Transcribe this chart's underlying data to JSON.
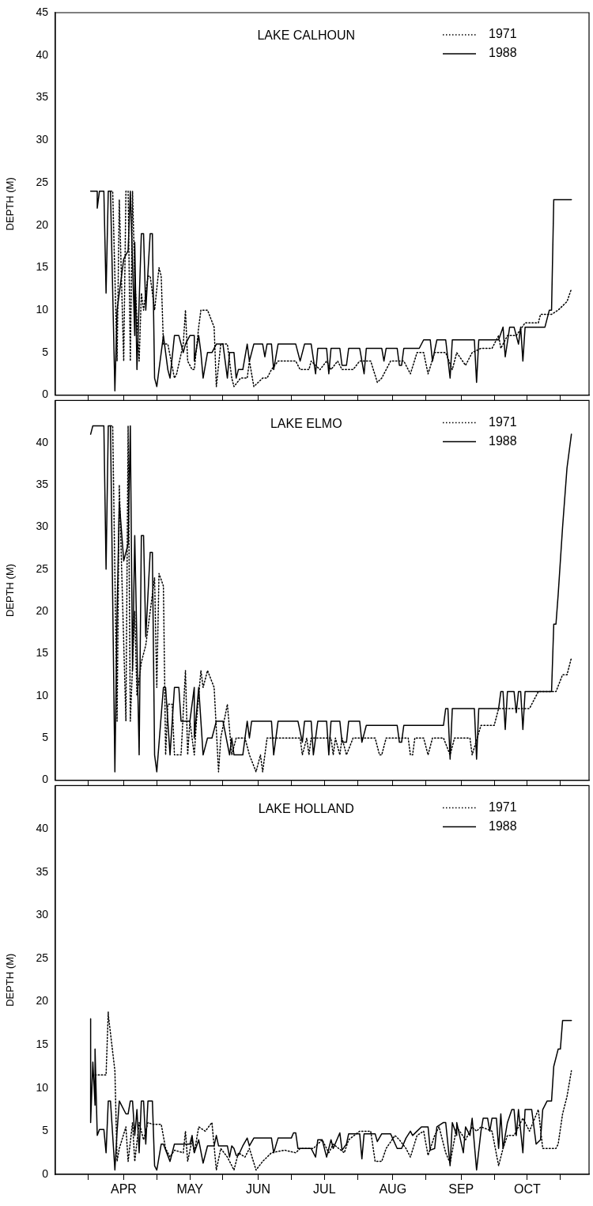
{
  "chart_data": [
    {
      "type": "line",
      "title": "LAKE CALHOUN",
      "ylabel": "DEPTH (M)",
      "legend": "top right",
      "tick_labels": "y",
      "xlim": [
        "--03-01",
        "--10-29"
      ],
      "xticks": [
        {
          "value": "--03-16",
          "label": null
        },
        {
          "value": "--04-01",
          "label": null
        },
        {
          "value": "--04-16",
          "label": null
        },
        {
          "value": "--05-01",
          "label": null
        },
        {
          "value": "--05-16",
          "label": null
        },
        {
          "value": "--06-01",
          "label": null
        },
        {
          "value": "--06-16",
          "label": null
        },
        {
          "value": "--07-01",
          "label": null
        },
        {
          "value": "--07-16",
          "label": null
        },
        {
          "value": "--08-01",
          "label": null
        },
        {
          "value": "--08-16",
          "label": null
        },
        {
          "value": "--09-01",
          "label": null
        },
        {
          "value": "--09-16",
          "label": null
        },
        {
          "value": "--10-01",
          "label": null
        },
        {
          "value": "--10-16",
          "label": null
        }
      ],
      "ylim": [
        0,
        45
      ],
      "yticks": [
        0,
        5,
        10,
        15,
        20,
        25,
        30,
        35,
        40,
        45
      ],
      "series": [
        {
          "name": "1971",
          "color": "#000000",
          "line_style": "dotted",
          "x": [
            "--03-26",
            "--03-27",
            "--03-29",
            "--03-30",
            "--04-01",
            "--04-02",
            "--04-03",
            "--04-04",
            "--04-05",
            "--04-06",
            "--04-08",
            "--04-09",
            "--04-10",
            "--04-12",
            "--04-13",
            "--04-15",
            "--04-17",
            "--04-18",
            "--04-19",
            "--04-21",
            "--04-24",
            "--04-25",
            "--04-28",
            "--04-29",
            "--04-29",
            "--04-30",
            "--05-02",
            "--05-03",
            "--05-05",
            "--05-06",
            "--05-09",
            "--05-12",
            "--05-13",
            "--05-15",
            "--05-18",
            "--05-20",
            "--05-21",
            "--05-24",
            "--05-27",
            "--05-28",
            "--05-30",
            "--06-03",
            "--06-05",
            "--06-07",
            "--06-10",
            "--06-18",
            "--06-20",
            "--06-24",
            "--06-25",
            "--06-29",
            "--07-02",
            "--07-04",
            "--07-07",
            "--07-09",
            "--07-14",
            "--07-17",
            "--07-22",
            "--07-25",
            "--07-27",
            "--07-31",
            "--08-06",
            "--08-09",
            "--08-12",
            "--08-15",
            "--08-17",
            "--08-20",
            "--08-25",
            "--08-28",
            "--08-30",
            "--09-03",
            "--09-06",
            "--09-10",
            "--09-15",
            "--09-18",
            "--09-19",
            "--09-22",
            "--09-26",
            "--09-30",
            "--10-06",
            "--10-07",
            "--10-12",
            "--10-15",
            "--10-19",
            "--10-21"
          ],
          "values": [
            24,
            24,
            4,
            23,
            4,
            24,
            24,
            4,
            24,
            14,
            4,
            12,
            10,
            14,
            14,
            10,
            15,
            14,
            6,
            6,
            2,
            2.5,
            6,
            10,
            10,
            4,
            3,
            3,
            8,
            10,
            10,
            8,
            1,
            6,
            6,
            2,
            1,
            2,
            2,
            4,
            1,
            2,
            2,
            3,
            4,
            4,
            3,
            3,
            4,
            3,
            4,
            3,
            4,
            3,
            3,
            4,
            4,
            1.5,
            2,
            4,
            4,
            2.5,
            5,
            5,
            2.5,
            5,
            5,
            3,
            5,
            3.5,
            5,
            5.5,
            5.5,
            7,
            5.5,
            7,
            7,
            8.5,
            8.5,
            9.5,
            9.5,
            10,
            11,
            12.5
          ]
        },
        {
          "name": "1988",
          "color": "#000000",
          "line_style": "solid",
          "x": [
            "--03-17",
            "--03-20",
            "--03-20",
            "--03-21",
            "--03-23",
            "--03-24",
            "--03-25",
            "--03-26",
            "--03-28",
            "--03-29",
            "--04-01",
            "--04-03",
            "--04-04",
            "--04-06",
            "--04-06",
            "--04-07",
            "--04-09",
            "--04-10",
            "--04-11",
            "--04-13",
            "--04-14",
            "--04-15",
            "--04-16",
            "--04-19",
            "--04-19",
            "--04-21",
            "--04-22",
            "--04-24",
            "--04-26",
            "--04-28",
            "--04-29",
            "--05-01",
            "--05-03",
            "--05-03",
            "--05-05",
            "--05-06",
            "--05-07",
            "--05-09",
            "--05-11",
            "--05-13",
            "--05-16",
            "--05-18",
            "--05-19",
            "--05-21",
            "--05-22",
            "--05-23",
            "--05-25",
            "--05-27",
            "--05-28",
            "--05-30",
            "--06-03",
            "--06-04",
            "--06-05",
            "--06-07",
            "--06-08",
            "--06-10",
            "--06-18",
            "--06-20",
            "--06-22",
            "--06-25",
            "--06-27",
            "--06-28",
            "--07-02",
            "--07-03",
            "--07-04",
            "--07-08",
            "--07-09",
            "--07-11",
            "--07-12",
            "--07-17",
            "--07-19",
            "--07-20",
            "--07-27",
            "--07-28",
            "--07-29",
            "--08-03",
            "--08-04",
            "--08-05",
            "--08-06",
            "--08-13",
            "--08-15",
            "--08-18",
            "--08-19",
            "--08-21",
            "--08-25",
            "--08-27",
            "--08-28",
            "--09-07",
            "--09-08",
            "--09-09",
            "--09-18",
            "--09-20",
            "--09-20",
            "--09-21",
            "--09-23",
            "--09-25",
            "--09-27",
            "--09-28",
            "--09-29",
            "--09-30",
            "--10-09",
            "--10-11",
            "--10-12",
            "--10-13",
            "--10-21"
          ],
          "values": [
            24,
            24,
            22,
            24,
            24,
            12,
            24,
            24,
            0.5,
            10,
            16,
            17,
            24,
            7,
            18,
            3,
            19,
            19,
            10,
            19,
            19,
            2,
            1,
            7,
            7,
            3,
            2,
            7,
            7,
            5,
            6,
            7,
            7,
            4,
            7,
            5,
            2,
            5,
            5,
            6,
            6,
            2,
            5,
            5,
            2,
            3,
            3,
            6,
            4,
            6,
            6,
            4.5,
            6,
            6,
            3,
            6,
            6,
            4,
            6,
            6,
            2.5,
            5.5,
            5.5,
            2.5,
            5.5,
            5.5,
            3.5,
            3.5,
            5.5,
            5.5,
            2.5,
            5.5,
            5.5,
            4,
            5.5,
            5.5,
            3.5,
            3.5,
            5.5,
            5.5,
            6.5,
            6.5,
            4,
            6.5,
            6.5,
            2,
            6.5,
            6.5,
            1.5,
            6.5,
            6.5,
            8,
            8,
            4.5,
            8,
            8,
            6,
            8,
            4,
            8,
            8,
            10,
            10,
            23,
            23
          ]
        }
      ]
    },
    {
      "type": "line",
      "title": "LAKE ELMO",
      "ylabel": "DEPTH (M)",
      "legend": "top right",
      "tick_labels": "y",
      "xlim": [
        "--03-01",
        "--10-29"
      ],
      "xticks": [
        {
          "value": "--03-16",
          "label": null
        },
        {
          "value": "--04-01",
          "label": null
        },
        {
          "value": "--04-16",
          "label": null
        },
        {
          "value": "--05-01",
          "label": null
        },
        {
          "value": "--05-16",
          "label": null
        },
        {
          "value": "--06-01",
          "label": null
        },
        {
          "value": "--06-16",
          "label": null
        },
        {
          "value": "--07-01",
          "label": null
        },
        {
          "value": "--07-16",
          "label": null
        },
        {
          "value": "--08-01",
          "label": null
        },
        {
          "value": "--08-16",
          "label": null
        },
        {
          "value": "--09-01",
          "label": null
        },
        {
          "value": "--09-16",
          "label": null
        },
        {
          "value": "--10-01",
          "label": null
        },
        {
          "value": "--10-16",
          "label": null
        }
      ],
      "ylim": [
        0,
        45
      ],
      "yticks": [
        0,
        5,
        10,
        15,
        20,
        25,
        30,
        35,
        40
      ],
      "series": [
        {
          "name": "1971",
          "color": "#000000",
          "line_style": "dotted",
          "x": [
            "--03-26",
            "--03-27",
            "--03-29",
            "--03-30",
            "--04-02",
            "--04-03",
            "--04-03",
            "--04-04",
            "--04-06",
            "--04-07",
            "--04-09",
            "--04-11",
            "--04-13",
            "--04-15",
            "--04-16",
            "--04-17",
            "--04-19",
            "--04-20",
            "--04-21",
            "--04-23",
            "--04-24",
            "--04-27",
            "--04-29",
            "--04-30",
            "--05-01",
            "--05-03",
            "--05-04",
            "--05-06",
            "--05-07",
            "--05-09",
            "--05-12",
            "--05-14",
            "--05-15",
            "--05-18",
            "--05-20",
            "--05-22",
            "--05-26",
            "--05-28",
            "--05-31",
            "--06-02",
            "--06-03",
            "--06-05",
            "--06-20",
            "--06-21",
            "--06-23",
            "--06-24",
            "--06-25",
            "--07-04",
            "--07-05",
            "--07-06",
            "--07-08",
            "--07-09",
            "--07-11",
            "--07-14",
            "--07-24",
            "--07-26",
            "--07-27",
            "--07-29",
            "--08-08",
            "--08-09",
            "--08-10",
            "--08-11",
            "--08-15",
            "--08-17",
            "--08-19",
            "--08-24",
            "--08-27",
            "--08-29",
            "--09-05",
            "--09-06",
            "--09-10",
            "--09-16",
            "--09-18",
            "--09-30",
            "--10-02",
            "--10-06",
            "--10-14",
            "--10-17",
            "--10-19",
            "--10-21"
          ],
          "values": [
            42,
            42,
            7,
            35,
            7,
            42,
            42,
            7,
            20,
            10,
            14,
            16,
            20,
            24,
            11,
            24.5,
            23,
            3,
            9,
            9,
            3,
            3,
            13,
            3,
            7,
            3,
            7,
            13,
            11,
            13,
            11,
            1,
            5,
            9,
            3,
            5,
            5,
            3,
            1,
            3,
            1,
            5,
            5,
            3,
            5,
            3,
            5,
            5,
            3,
            5,
            3,
            5,
            3,
            5,
            5,
            3,
            3,
            5,
            5,
            3,
            3,
            5,
            5,
            3,
            5,
            5,
            3,
            5,
            5,
            3,
            6.5,
            6.5,
            8.5,
            8.5,
            8.5,
            10.5,
            10.5,
            12.5,
            12.5,
            14.5
          ]
        },
        {
          "name": "1988",
          "color": "#000000",
          "line_style": "solid",
          "x": [
            "--03-17",
            "--03-18",
            "--03-23",
            "--03-24",
            "--03-25",
            "--03-26",
            "--03-28",
            "--03-29",
            "--03-30",
            "--04-01",
            "--04-03",
            "--04-04",
            "--04-05",
            "--04-06",
            "--04-08",
            "--04-09",
            "--04-10",
            "--04-11",
            "--04-13",
            "--04-14",
            "--04-15",
            "--04-16",
            "--04-19",
            "--04-20",
            "--04-22",
            "--04-24",
            "--04-26",
            "--04-27",
            "--05-01",
            "--05-03",
            "--05-03",
            "--05-05",
            "--05-07",
            "--05-09",
            "--05-11",
            "--05-13",
            "--05-16",
            "--05-19",
            "--05-20",
            "--05-21",
            "--05-25",
            "--05-27",
            "--05-28",
            "--05-29",
            "--06-07",
            "--06-08",
            "--06-10",
            "--06-19",
            "--06-21",
            "--06-22",
            "--06-25",
            "--06-26",
            "--06-28",
            "--07-02",
            "--07-03",
            "--07-04",
            "--07-08",
            "--07-09",
            "--07-11",
            "--07-12",
            "--07-17",
            "--07-18",
            "--07-20",
            "--08-03",
            "--08-04",
            "--08-05",
            "--08-06",
            "--08-24",
            "--08-25",
            "--08-26",
            "--08-27",
            "--08-28",
            "--09-07",
            "--09-08",
            "--09-09",
            "--09-18",
            "--09-19",
            "--09-20",
            "--09-21",
            "--09-22",
            "--09-25",
            "--09-26",
            "--09-27",
            "--09-28",
            "--09-29",
            "--09-30",
            "--10-12",
            "--10-13",
            "--10-14",
            "--10-15",
            "--10-17",
            "--10-19",
            "--10-21"
          ],
          "values": [
            41,
            42,
            42,
            25,
            42,
            42,
            1,
            20,
            33,
            26,
            28,
            42,
            13,
            29,
            3,
            29,
            29,
            17,
            27,
            27,
            3,
            1,
            11,
            11,
            3,
            11,
            11,
            7,
            7,
            11,
            5,
            11,
            3,
            5,
            5,
            7,
            7,
            3,
            5,
            3,
            3,
            7,
            5,
            7,
            7,
            3,
            7,
            7,
            4.5,
            7,
            7,
            3,
            7,
            7,
            3,
            7,
            7,
            4.5,
            4.5,
            7,
            7,
            4.5,
            6.5,
            6.5,
            4.5,
            4.5,
            6.5,
            6.5,
            8.5,
            8.5,
            2.5,
            8.5,
            8.5,
            2.5,
            8.5,
            8.5,
            10.5,
            10.5,
            6,
            10.5,
            10.5,
            8,
            10.5,
            10.5,
            6,
            10.5,
            10.5,
            18.5,
            18.5,
            22,
            30,
            37,
            41
          ]
        }
      ]
    },
    {
      "type": "line",
      "title": "LAKE HOLLAND",
      "ylabel": "DEPTH (M)",
      "legend": "top right",
      "xlim": [
        "--03-01",
        "--10-29"
      ],
      "xticks": [
        {
          "value": "--03-16",
          "label": null
        },
        {
          "value": "--04-01",
          "label": "APR"
        },
        {
          "value": "--04-16",
          "label": null
        },
        {
          "value": "--05-01",
          "label": "MAY"
        },
        {
          "value": "--05-16",
          "label": null
        },
        {
          "value": "--06-01",
          "label": "JUN"
        },
        {
          "value": "--06-16",
          "label": null
        },
        {
          "value": "--07-01",
          "label": "JUL"
        },
        {
          "value": "--07-16",
          "label": null
        },
        {
          "value": "--08-01",
          "label": "AUG"
        },
        {
          "value": "--08-16",
          "label": null
        },
        {
          "value": "--09-01",
          "label": "SEP"
        },
        {
          "value": "--09-16",
          "label": null
        },
        {
          "value": "--10-01",
          "label": "OCT"
        },
        {
          "value": "--10-16",
          "label": null
        }
      ],
      "ylim": [
        0,
        45
      ],
      "yticks": [
        0,
        5,
        10,
        15,
        20,
        25,
        30,
        35,
        40
      ],
      "series": [
        {
          "name": "1971",
          "color": "#000000",
          "line_style": "dotted",
          "x": [
            "--03-19",
            "--03-24",
            "--03-25",
            "--03-25",
            "--03-28",
            "--03-29",
            "--03-30",
            "--04-02",
            "--04-03",
            "--04-05",
            "--04-06",
            "--04-08",
            "--04-10",
            "--04-12",
            "--04-14",
            "--04-16",
            "--04-18",
            "--04-20",
            "--04-22",
            "--04-24",
            "--04-28",
            "--04-29",
            "--04-30",
            "--05-02",
            "--05-03",
            "--05-05",
            "--05-08",
            "--05-11",
            "--05-13",
            "--05-15",
            "--05-18",
            "--05-21",
            "--05-23",
            "--05-26",
            "--05-28",
            "--05-31",
            "--06-03",
            "--06-07",
            "--06-13",
            "--06-18",
            "--06-20",
            "--06-26",
            "--06-30",
            "--07-03",
            "--07-05",
            "--07-10",
            "--07-12",
            "--07-17",
            "--07-22",
            "--07-24",
            "--07-27",
            "--07-29",
            "--08-02",
            "--08-04",
            "--08-07",
            "--08-09",
            "--08-12",
            "--08-15",
            "--08-17",
            "--08-20",
            "--08-22",
            "--08-25",
            "--08-27",
            "--08-30",
            "--09-03",
            "--09-06",
            "--09-08",
            "--09-10",
            "--09-15",
            "--09-18",
            "--09-20",
            "--09-22",
            "--09-25",
            "--09-29",
            "--10-02",
            "--10-06",
            "--10-08",
            "--10-14",
            "--10-15",
            "--10-17",
            "--10-19",
            "--10-21"
          ],
          "values": [
            11.5,
            11.5,
            18.8,
            18.5,
            12,
            1.5,
            3,
            5.5,
            1.5,
            6,
            1.5,
            6,
            4,
            6,
            5.8,
            5.8,
            5.8,
            3,
            2,
            2.8,
            2.5,
            5,
            1.5,
            4,
            2.5,
            5.5,
            5,
            6,
            0.5,
            3,
            2,
            0.5,
            2.5,
            2,
            3,
            0.5,
            1.5,
            2.5,
            2.8,
            2.5,
            3,
            3,
            4,
            2.5,
            3.5,
            2.5,
            4,
            5,
            5,
            1.5,
            1.5,
            3,
            4.5,
            4,
            3,
            2,
            4.5,
            5,
            2.2,
            4.5,
            5.5,
            2.5,
            1.3,
            5.5,
            4,
            5.5,
            5,
            5.5,
            5,
            1,
            3,
            4.5,
            4.5,
            6.5,
            5,
            7.5,
            3,
            3,
            3.5,
            7,
            9,
            12
          ]
        },
        {
          "name": "1988",
          "color": "#000000",
          "line_style": "solid",
          "x": [
            "--03-17",
            "--03-17",
            "--03-18",
            "--03-19",
            "--03-19",
            "--03-20",
            "--03-21",
            "--03-23",
            "--03-24",
            "--03-25",
            "--03-26",
            "--03-28",
            "--03-29",
            "--03-30",
            "--04-02",
            "--04-03",
            "--04-04",
            "--04-05",
            "--04-06",
            "--04-07",
            "--04-08",
            "--04-09",
            "--04-10",
            "--04-11",
            "--04-12",
            "--04-14",
            "--04-15",
            "--04-16",
            "--04-18",
            "--04-19",
            "--04-22",
            "--04-24",
            "--05-01",
            "--05-02",
            "--05-03",
            "--05-05",
            "--05-07",
            "--05-09",
            "--05-12",
            "--05-13",
            "--05-14",
            "--05-18",
            "--05-19",
            "--05-20",
            "--05-21",
            "--05-22",
            "--05-23",
            "--05-25",
            "--05-27",
            "--05-28",
            "--05-30",
            "--06-07",
            "--06-08",
            "--06-10",
            "--06-16",
            "--06-17",
            "--06-18",
            "--06-19",
            "--06-25",
            "--06-27",
            "--06-28",
            "--06-30",
            "--07-02",
            "--07-04",
            "--07-05",
            "--07-08",
            "--07-09",
            "--07-11",
            "--07-12",
            "--07-17",
            "--07-18",
            "--07-19",
            "--07-24",
            "--07-25",
            "--07-27",
            "--07-31",
            "--08-03",
            "--08-05",
            "--08-07",
            "--08-09",
            "--08-10",
            "--08-12",
            "--08-14",
            "--08-17",
            "--08-18",
            "--08-20",
            "--08-21",
            "--08-24",
            "--08-25",
            "--08-27",
            "--08-28",
            "--08-30",
            "--08-30",
            "--09-02",
            "--09-03",
            "--09-05",
            "--09-06",
            "--09-08",
            "--09-10",
            "--09-11",
            "--09-13",
            "--09-14",
            "--09-15",
            "--09-17",
            "--09-18",
            "--09-19",
            "--09-20",
            "--09-22",
            "--09-24",
            "--09-25",
            "--09-26",
            "--09-27",
            "--09-29",
            "--09-30",
            "--10-03",
            "--10-05",
            "--10-07",
            "--10-08",
            "--10-10",
            "--10-12",
            "--10-13",
            "--10-15",
            "--10-16",
            "--10-17",
            "--10-21"
          ],
          "values": [
            18,
            6,
            13,
            8,
            14.5,
            4.5,
            5.2,
            5.2,
            2.5,
            8.5,
            8.5,
            0.5,
            5,
            8.5,
            7,
            7,
            8.5,
            8.5,
            4.5,
            7.5,
            2.5,
            8.5,
            8.5,
            3.5,
            8.5,
            8.5,
            1,
            0.5,
            3.5,
            3.5,
            1.5,
            3.5,
            3.5,
            4.5,
            2.5,
            4,
            1.3,
            3.3,
            3.3,
            4.5,
            3.3,
            3.3,
            2,
            3.3,
            3,
            2.2,
            2.2,
            3.3,
            4.2,
            3.3,
            4.2,
            4.2,
            2.5,
            4.2,
            4.2,
            4.8,
            4.8,
            3,
            3,
            2,
            4,
            4,
            2,
            4,
            3,
            4.8,
            2.8,
            3.5,
            4.7,
            4.7,
            1.8,
            4.7,
            4.7,
            3.8,
            4.7,
            4.7,
            3,
            3,
            4.2,
            5,
            4.5,
            5,
            5.5,
            5.5,
            2.8,
            3,
            5.5,
            6,
            6,
            1,
            6,
            4.5,
            6,
            2.5,
            5.5,
            4.5,
            6.5,
            0.5,
            5,
            6.5,
            6.5,
            5,
            6.5,
            6.5,
            3,
            7,
            3,
            6,
            7.5,
            7.5,
            4.5,
            7.5,
            2.5,
            7.5,
            7.5,
            3.5,
            4,
            7.5,
            8.5,
            8.5,
            12.5,
            14.5,
            14.5,
            17.8,
            17.8
          ]
        }
      ]
    }
  ]
}
